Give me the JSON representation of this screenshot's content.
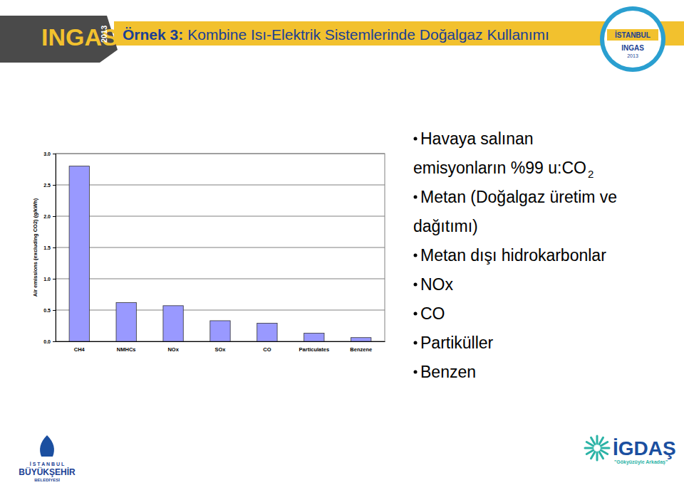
{
  "chart_data": {
    "type": "bar",
    "y_label": "Air emissions (excluding CO2)  (g/kWh)",
    "categories": [
      "CH4",
      "NMHCs",
      "NOx",
      "SOx",
      "CO",
      "Particulates",
      "Benzene"
    ],
    "values": [
      2.8,
      0.62,
      0.57,
      0.33,
      0.29,
      0.13,
      0.06
    ],
    "color": "#9999ff",
    "ylim": [
      0,
      3
    ],
    "yticks": [
      {
        "value": 0,
        "label": "0.0"
      },
      0.5,
      {
        "value": 1,
        "label": "1.0"
      },
      1.5,
      {
        "value": 2,
        "label": "2.0"
      },
      2.5,
      {
        "value": 3,
        "label": "3.0"
      }
    ],
    "grid": true
  },
  "slide": {
    "title": [
      "Örnek 3:",
      "Kombine Isı-Elektrik Sistemlerinde Doğalgaz Kullanımı"
    ],
    "bullets": [
      {
        "lines": [
          "Havaya salınan",
          "emisyonların %99 u:CO"
        ],
        "subscript": "2"
      },
      {
        "lines": [
          "Metan (Doğalgaz üretim ve",
          "dağıtımı)"
        ]
      },
      {
        "lines": [
          "Metan dışı hidrokarbonlar"
        ]
      },
      {
        "lines": [
          "NOx"
        ]
      },
      {
        "lines": [
          "CO"
        ]
      },
      {
        "lines": [
          "Partiküller"
        ]
      },
      {
        "lines": [
          "Benzen"
        ]
      }
    ],
    "ingas_logo": [
      "INGAS",
      "2013"
    ],
    "badge_logo": [
      "İSTANBUL",
      "INGAS",
      "2013"
    ],
    "ibb_logo": [
      "İ S T A N B U L",
      "BÜYÜKŞEHİR",
      "BELEDİYESİ"
    ],
    "igdas_logo": [
      "İGDAŞ",
      "\"Gökyüzüyle Arkadaş\""
    ]
  }
}
